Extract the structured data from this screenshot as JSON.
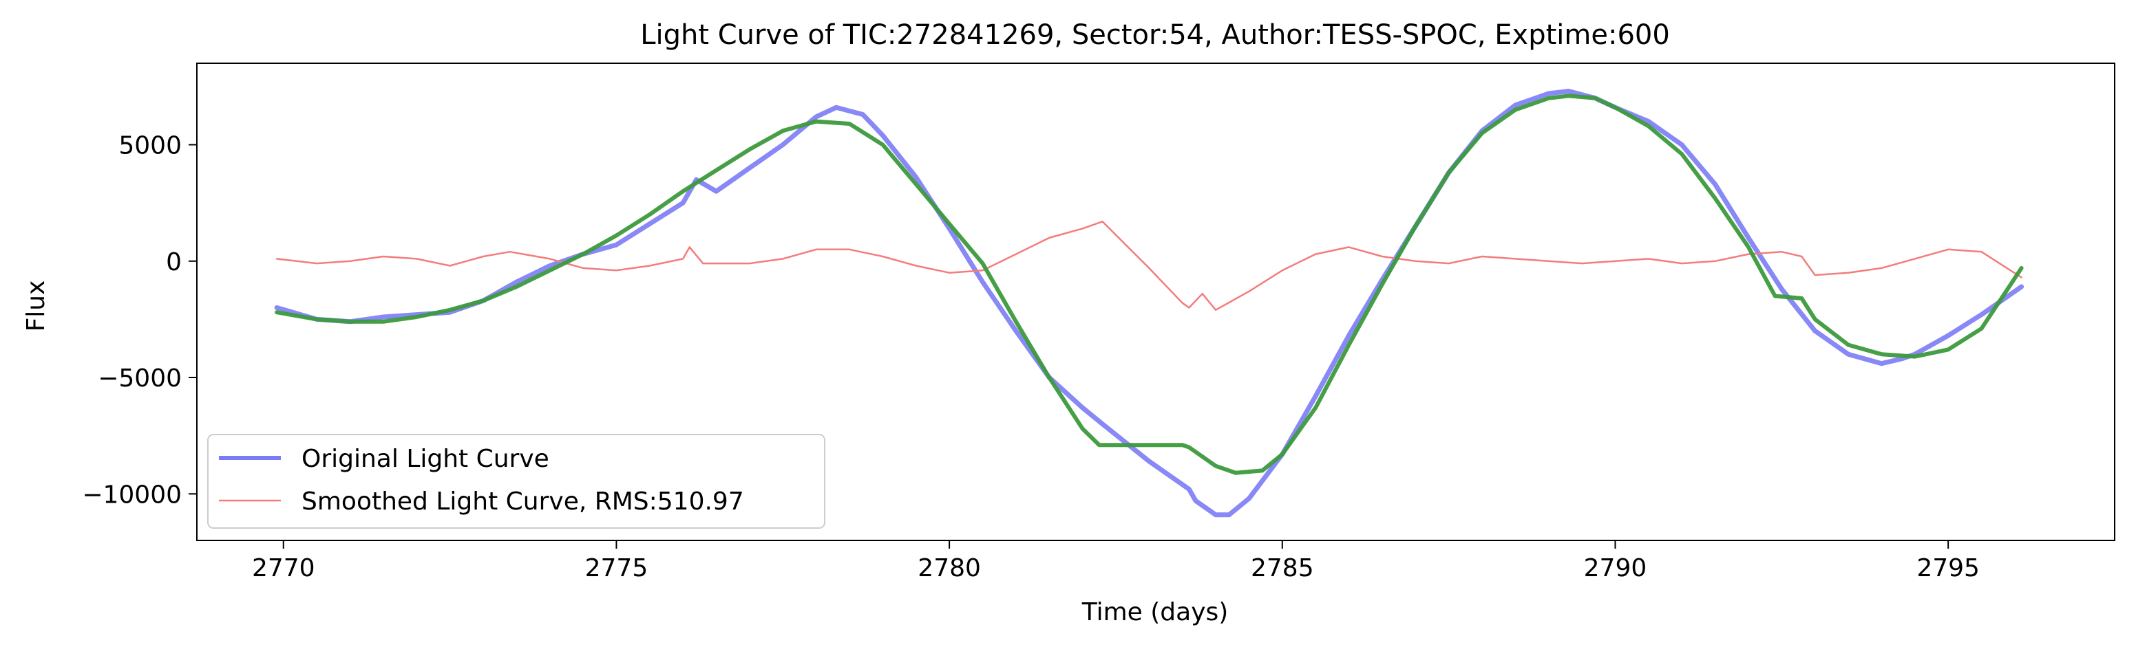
{
  "chart_data": {
    "type": "line",
    "title": "Light Curve of TIC:272841269, Sector:54, Author:TESS-SPOC, Exptime:600",
    "xlabel": "Time (days)",
    "ylabel": "Flux",
    "xlim": [
      2768.7,
      2797.5
    ],
    "ylim": [
      -12000,
      8500
    ],
    "xticks": [
      2770,
      2775,
      2780,
      2785,
      2790,
      2795
    ],
    "xtick_labels": [
      "2770",
      "2775",
      "2780",
      "2785",
      "2790",
      "2795"
    ],
    "yticks": [
      5000,
      0,
      -5000,
      -10000
    ],
    "ytick_labels": [
      "5000",
      "0",
      "−5000",
      "−10000"
    ],
    "grid": false,
    "legend_position": "lower-left",
    "series": [
      {
        "name": "Original Light Curve",
        "color": "#7b7bf5",
        "x": [
          2769.9,
          2770.5,
          2771.0,
          2771.5,
          2772.0,
          2772.5,
          2773.0,
          2773.5,
          2774.0,
          2774.5,
          2775.0,
          2775.5,
          2776.0,
          2776.2,
          2776.5,
          2777.0,
          2777.5,
          2778.0,
          2778.3,
          2778.7,
          2779.0,
          2779.5,
          2780.0,
          2780.5,
          2781.0,
          2781.5,
          2782.0,
          2782.3,
          2783.0,
          2783.6,
          2783.7,
          2784.0,
          2784.2,
          2784.5,
          2785.0,
          2785.5,
          2786.0,
          2786.5,
          2787.0,
          2787.5,
          2788.0,
          2788.5,
          2789.0,
          2789.3,
          2789.7,
          2790.0,
          2790.5,
          2791.0,
          2791.5,
          2792.0,
          2792.5,
          2793.0,
          2793.5,
          2794.0,
          2794.3,
          2794.5,
          2795.0,
          2795.5,
          2796.1
        ],
        "y": [
          -2000,
          -2500,
          -2600,
          -2400,
          -2300,
          -2200,
          -1700,
          -900,
          -200,
          300,
          700,
          1600,
          2500,
          3500,
          3000,
          4000,
          5000,
          6200,
          6600,
          6300,
          5400,
          3600,
          1400,
          -900,
          -3000,
          -5000,
          -6300,
          -7000,
          -8600,
          -9800,
          -10300,
          -10900,
          -10900,
          -10200,
          -8300,
          -5800,
          -3200,
          -800,
          1500,
          3800,
          5600,
          6700,
          7200,
          7300,
          7000,
          6600,
          6000,
          5000,
          3300,
          1000,
          -1200,
          -3000,
          -4000,
          -4400,
          -4200,
          -4000,
          -3200,
          -2300,
          -1100
        ]
      },
      {
        "name": "Smoothed Light Curve, RMS:510.97",
        "color": "#f47c7c",
        "x": [
          2769.9,
          2770.5,
          2771.0,
          2771.5,
          2772.0,
          2772.5,
          2773.0,
          2773.4,
          2774.0,
          2774.5,
          2775.0,
          2775.5,
          2776.0,
          2776.1,
          2776.3,
          2777.0,
          2777.5,
          2778.0,
          2778.5,
          2779.0,
          2779.5,
          2780.0,
          2780.5,
          2781.0,
          2781.5,
          2782.0,
          2782.3,
          2783.0,
          2783.5,
          2783.6,
          2783.8,
          2784.0,
          2784.5,
          2785.0,
          2785.5,
          2786.0,
          2786.5,
          2787.0,
          2787.5,
          2788.0,
          2788.5,
          2789.0,
          2789.5,
          2790.0,
          2790.5,
          2791.0,
          2791.5,
          2792.0,
          2792.5,
          2792.8,
          2793.0,
          2793.5,
          2794.0,
          2794.5,
          2795.0,
          2795.5,
          2796.1
        ],
        "y": [
          100,
          -100,
          0,
          200,
          100,
          -200,
          200,
          400,
          100,
          -300,
          -400,
          -200,
          100,
          600,
          -100,
          -100,
          100,
          500,
          500,
          200,
          -200,
          -500,
          -400,
          300,
          1000,
          1400,
          1700,
          -300,
          -1800,
          -2000,
          -1400,
          -2100,
          -1300,
          -400,
          300,
          600,
          200,
          0,
          -100,
          200,
          100,
          0,
          -100,
          0,
          100,
          -100,
          0,
          300,
          400,
          200,
          -600,
          -500,
          -300,
          100,
          500,
          400,
          -700
        ]
      },
      {
        "name": "",
        "color": "#3c9a3c",
        "x": [
          2769.9,
          2770.5,
          2771.0,
          2771.5,
          2772.0,
          2772.5,
          2773.0,
          2773.5,
          2774.0,
          2774.5,
          2775.0,
          2775.5,
          2776.0,
          2776.5,
          2777.0,
          2777.5,
          2778.0,
          2778.5,
          2779.0,
          2779.5,
          2780.0,
          2780.5,
          2781.0,
          2781.5,
          2782.0,
          2782.25,
          2783.0,
          2783.5,
          2783.6,
          2784.0,
          2784.3,
          2784.7,
          2785.0,
          2785.5,
          2786.0,
          2786.5,
          2787.0,
          2787.5,
          2788.0,
          2788.5,
          2789.0,
          2789.3,
          2789.7,
          2790.0,
          2790.5,
          2791.0,
          2791.5,
          2792.0,
          2792.4,
          2792.8,
          2793.0,
          2793.5,
          2794.0,
          2794.5,
          2795.0,
          2795.5,
          2796.1
        ],
        "y": [
          -2200,
          -2500,
          -2600,
          -2600,
          -2400,
          -2100,
          -1700,
          -1100,
          -400,
          300,
          1100,
          2000,
          3000,
          3900,
          4800,
          5600,
          6000,
          5900,
          5000,
          3300,
          1600,
          -100,
          -2600,
          -5000,
          -7200,
          -7900,
          -7900,
          -7900,
          -8000,
          -8800,
          -9100,
          -9000,
          -8300,
          -6300,
          -3600,
          -1000,
          1500,
          3800,
          5500,
          6500,
          7000,
          7100,
          7000,
          6600,
          5800,
          4600,
          2700,
          600,
          -1500,
          -1600,
          -2500,
          -3600,
          -4000,
          -4100,
          -3800,
          -2900,
          -300
        ]
      }
    ]
  }
}
